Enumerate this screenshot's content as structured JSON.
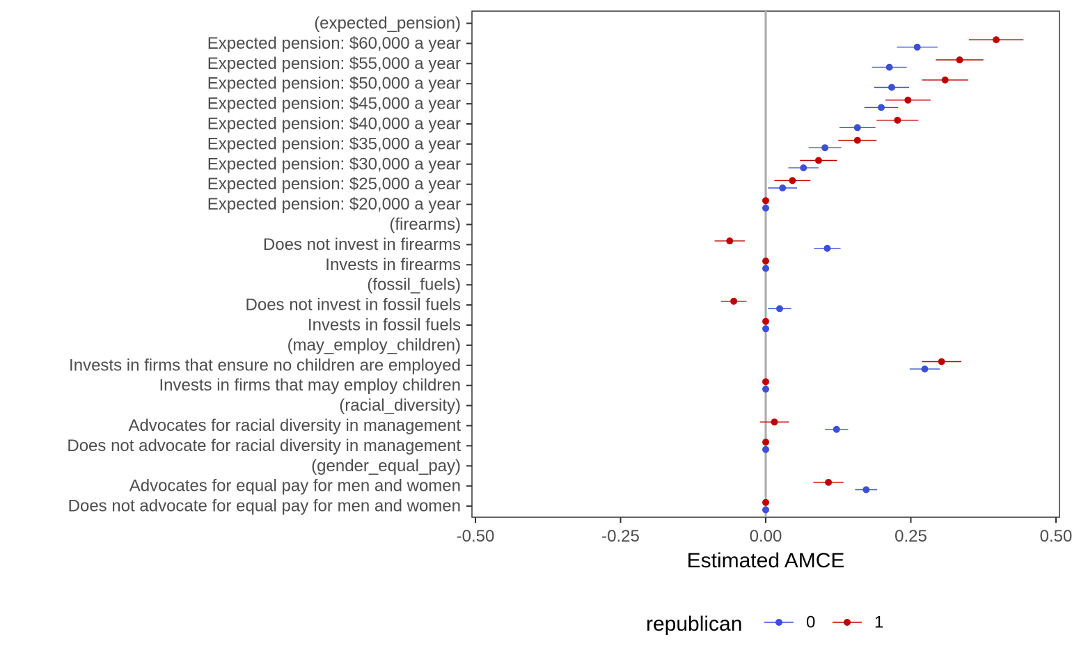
{
  "chart_data": {
    "type": "scatter",
    "xlabel": "Estimated AMCE",
    "xlim": [
      -0.5,
      0.5
    ],
    "x_ticks": [
      -0.5,
      -0.25,
      0.0,
      0.25,
      0.5
    ],
    "x_tick_labels": [
      "-0.50",
      "-0.25",
      "0.00",
      "0.25",
      "0.50"
    ],
    "reference_line": 0,
    "grid": false,
    "legend": {
      "title": "republican",
      "position": "bottom"
    },
    "categories": [
      "(expected_pension)",
      "Expected pension: $60,000 a year",
      "Expected pension: $55,000 a year",
      "Expected pension: $50,000 a year",
      "Expected pension: $45,000 a year",
      "Expected pension: $40,000 a year",
      "Expected pension: $35,000 a year",
      "Expected pension: $30,000 a year",
      "Expected pension: $25,000 a year",
      "Expected pension: $20,000 a year",
      "(firearms)",
      "Does not invest in firearms",
      "Invests in firearms",
      "(fossil_fuels)",
      "Does not invest in fossil fuels",
      "Invests in fossil fuels",
      "(may_employ_children)",
      "Invests in firms that ensure no children are employed",
      "Invests in firms that may employ children",
      "(racial_diversity)",
      "Advocates for racial diversity in management",
      "Does not advocate for racial diversity in management",
      "(gender_equal_pay)",
      "Advocates for equal pay for men and women",
      "Does not advocate for equal pay for men and women"
    ],
    "series": [
      {
        "name": "0",
        "color": "#3b4fd8",
        "values": [
          null,
          0.261,
          0.213,
          0.217,
          0.199,
          0.158,
          0.102,
          0.065,
          0.029,
          0.0,
          null,
          0.106,
          0.0,
          null,
          0.024,
          0.0,
          null,
          0.274,
          0.0,
          null,
          0.122,
          0.0,
          null,
          0.173,
          0.0
        ],
        "lower": [
          null,
          0.226,
          0.183,
          0.187,
          0.17,
          0.127,
          0.074,
          0.039,
          0.004,
          0.0,
          null,
          0.083,
          0.0,
          null,
          0.004,
          0.0,
          null,
          0.248,
          0.0,
          null,
          0.102,
          0.0,
          null,
          0.154,
          0.0
        ],
        "upper": [
          null,
          0.296,
          0.243,
          0.247,
          0.228,
          0.189,
          0.13,
          0.091,
          0.054,
          0.0,
          null,
          0.129,
          0.0,
          null,
          0.044,
          0.0,
          null,
          0.3,
          0.0,
          null,
          0.142,
          0.0,
          null,
          0.192,
          0.0
        ]
      },
      {
        "name": "1",
        "color": "#c00000",
        "values": [
          null,
          0.397,
          0.334,
          0.309,
          0.245,
          0.227,
          0.158,
          0.091,
          0.046,
          0.0,
          null,
          -0.062,
          0.0,
          null,
          -0.055,
          0.0,
          null,
          0.303,
          0.0,
          null,
          0.015,
          0.0,
          null,
          0.108,
          0.0
        ],
        "lower": [
          null,
          0.35,
          0.293,
          0.269,
          0.206,
          0.191,
          0.125,
          0.059,
          0.015,
          0.0,
          null,
          -0.088,
          0.0,
          null,
          -0.077,
          0.0,
          null,
          0.269,
          0.0,
          null,
          -0.01,
          0.0,
          null,
          0.082,
          0.0
        ],
        "upper": [
          null,
          0.444,
          0.375,
          0.349,
          0.284,
          0.263,
          0.191,
          0.123,
          0.077,
          0.0,
          null,
          -0.036,
          0.0,
          null,
          -0.033,
          0.0,
          null,
          0.337,
          0.0,
          null,
          0.04,
          0.0,
          null,
          0.134,
          0.0
        ]
      }
    ]
  }
}
